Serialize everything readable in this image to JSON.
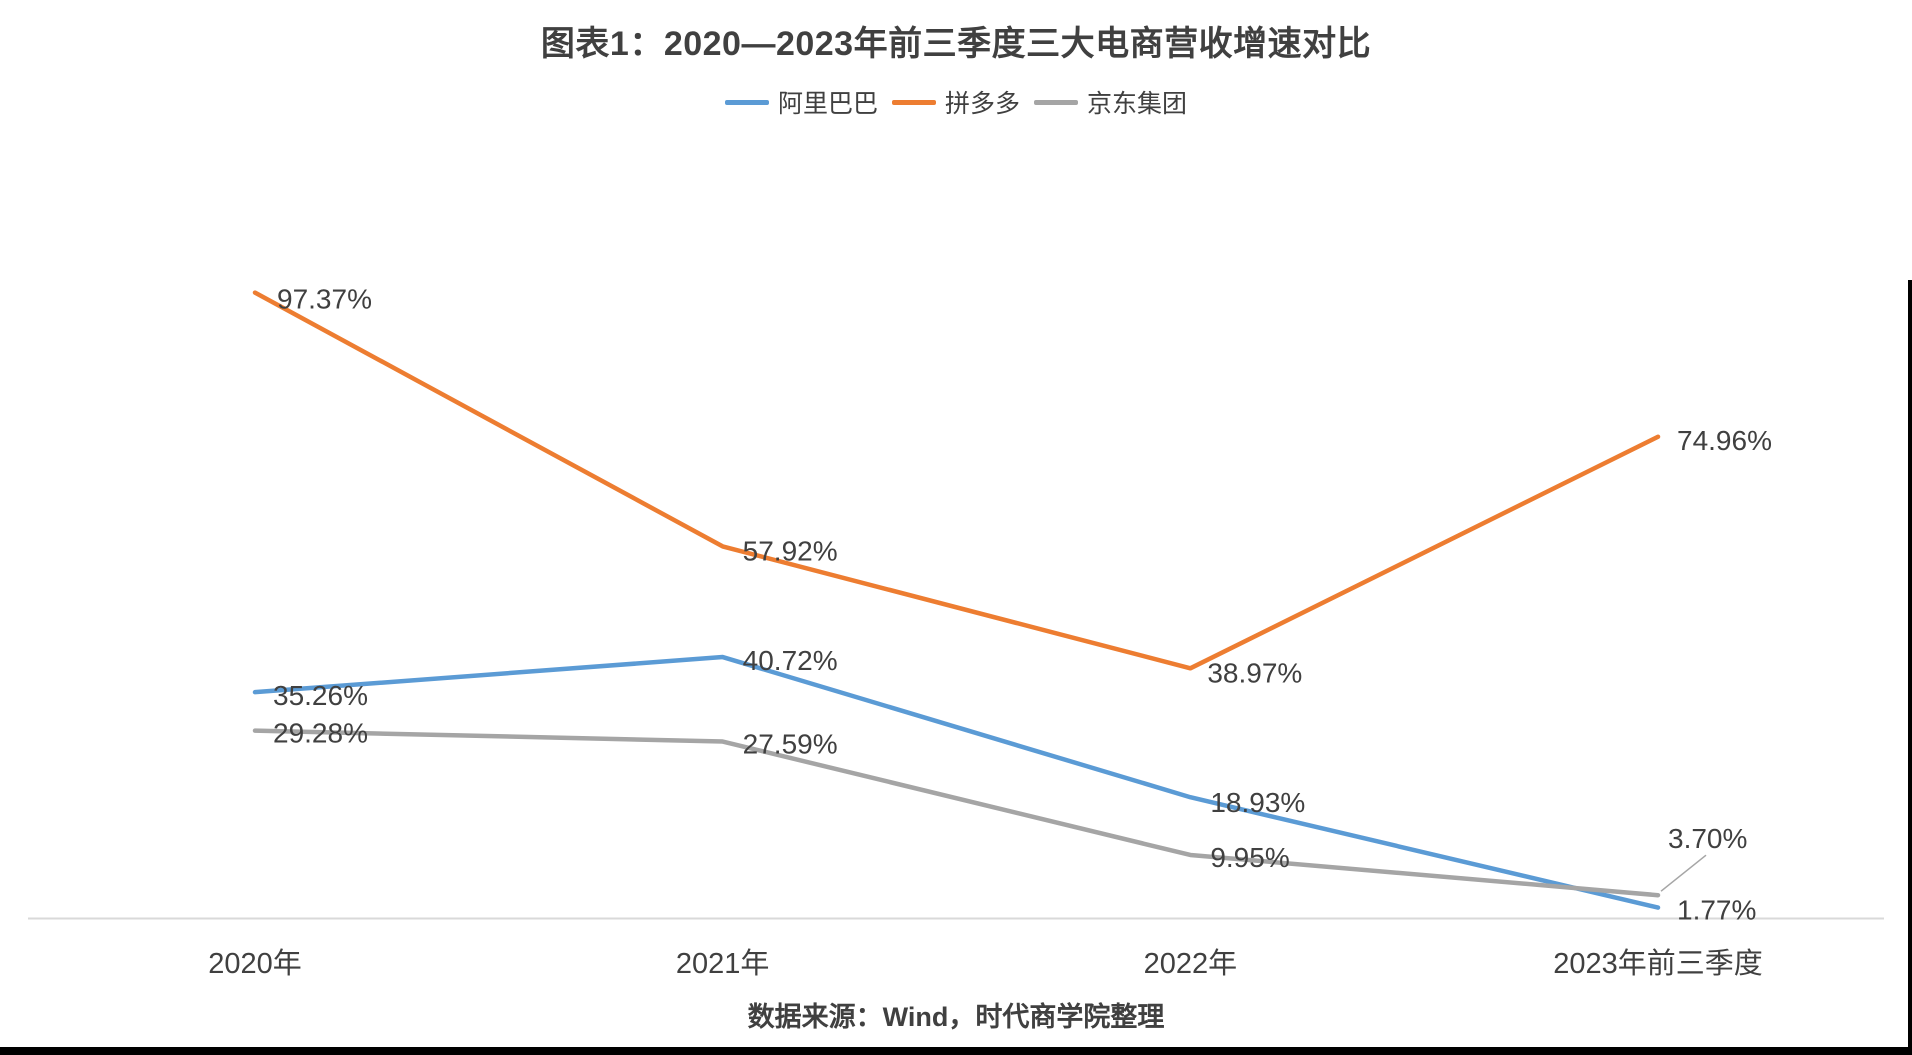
{
  "title": "图表1：2020—2023年前三季度三大电商营收增速对比",
  "source": "数据来源：Wind，时代商学院整理",
  "chart_data": {
    "type": "line",
    "title": "图表1：2020—2023年前三季度三大电商营收增速对比",
    "categories": [
      "2020年",
      "2021年",
      "2022年",
      "2023年前三季度"
    ],
    "series": [
      {
        "name": "阿里巴巴",
        "color": "#5B9BD5",
        "values": [
          35.26,
          40.72,
          18.93,
          1.77
        ],
        "labels": [
          "35.26%",
          "40.72%",
          "18.93%",
          "1.77%"
        ]
      },
      {
        "name": "拼多多",
        "color": "#ED7D31",
        "values": [
          97.37,
          57.92,
          38.97,
          74.96
        ],
        "labels": [
          "97.37%",
          "57.92%",
          "38.97%",
          "74.96%"
        ]
      },
      {
        "name": "京东集团",
        "color": "#A5A5A5",
        "values": [
          29.28,
          27.59,
          9.95,
          3.7
        ],
        "labels": [
          "29.28%",
          "27.59%",
          "9.95%",
          "3.70%"
        ]
      }
    ],
    "ylim": [
      0,
      120
    ],
    "unit": "%",
    "grid": false,
    "legend_position": "top",
    "label_color": "#404040",
    "axis_line_color": "#D9D9D9",
    "leader_line_color": "#A6A6A6",
    "source": "数据来源：Wind，时代商学院整理"
  }
}
